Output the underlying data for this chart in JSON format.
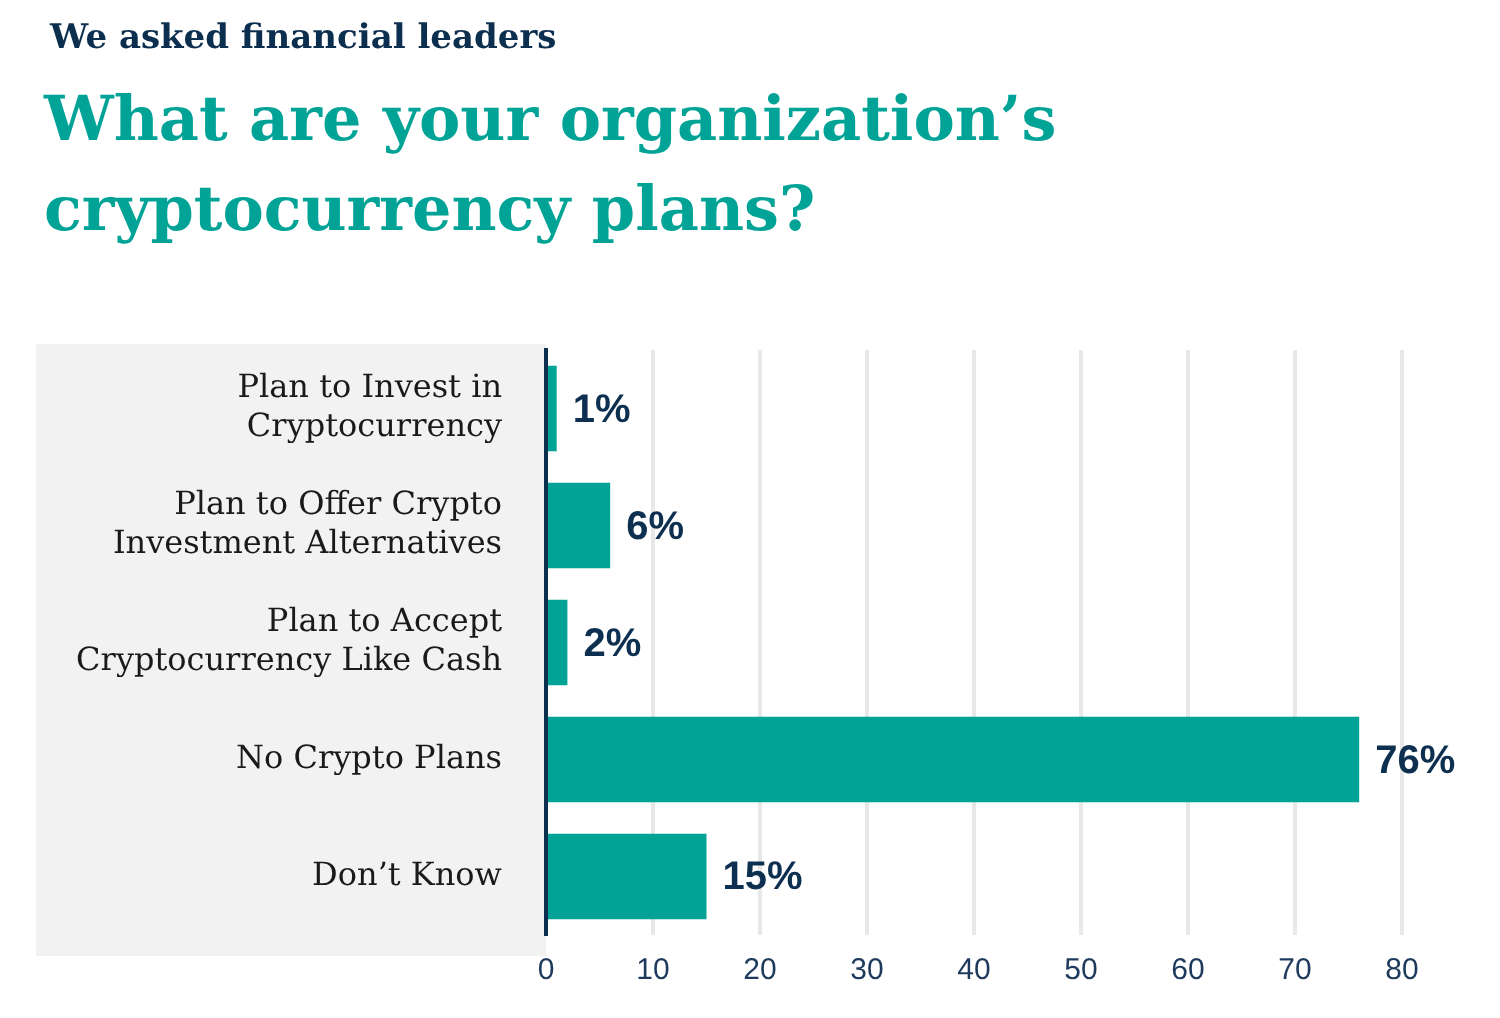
{
  "chart_data": {
    "type": "bar",
    "orientation": "horizontal",
    "subtitle": "We asked financial leaders",
    "title": "What are your organization’s cryptocurrency plans?",
    "categories": [
      "Plan to Invest in Cryptocurrency",
      "Plan to Offer Crypto Investment Alternatives",
      "Plan to Accept Cryptocurrency Like Cash",
      "No Crypto Plans",
      "Don’t Know"
    ],
    "values": [
      1,
      6,
      2,
      76,
      15
    ],
    "color": "#00a396",
    "value_labels": [
      "1%",
      "6%",
      "2%",
      "76%",
      "15%"
    ],
    "xlim": [
      0,
      80
    ],
    "xticks": [
      0,
      10,
      20,
      30,
      40,
      50,
      60,
      70,
      80
    ],
    "grid": "x"
  }
}
